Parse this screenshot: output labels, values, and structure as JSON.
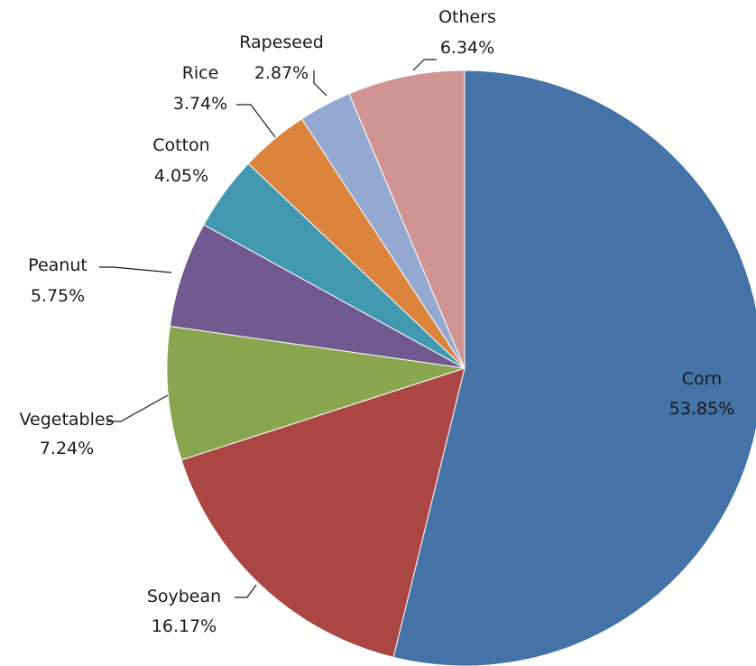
{
  "chart_data": {
    "type": "pie",
    "start_angle_deg": 0,
    "direction": "clockwise",
    "slices": [
      {
        "name": "Corn",
        "value": 53.85,
        "label": "53.85%",
        "color": "#4572a7"
      },
      {
        "name": "Soybean",
        "value": 16.17,
        "label": "16.17%",
        "color": "#aa4643"
      },
      {
        "name": "Vegetables",
        "value": 7.24,
        "label": "7.24%",
        "color": "#89a54e"
      },
      {
        "name": "Peanut",
        "value": 5.75,
        "label": "5.75%",
        "color": "#71588f"
      },
      {
        "name": "Cotton",
        "value": 4.05,
        "label": "4.05%",
        "color": "#4198af"
      },
      {
        "name": "Rice",
        "value": 3.74,
        "label": "3.74%",
        "color": "#db843d"
      },
      {
        "name": "Rapeseed",
        "value": 2.87,
        "label": "2.87%",
        "color": "#93a9cf"
      },
      {
        "name": "Others",
        "value": 6.34,
        "label": "6.34%",
        "color": "#d09493"
      }
    ]
  }
}
